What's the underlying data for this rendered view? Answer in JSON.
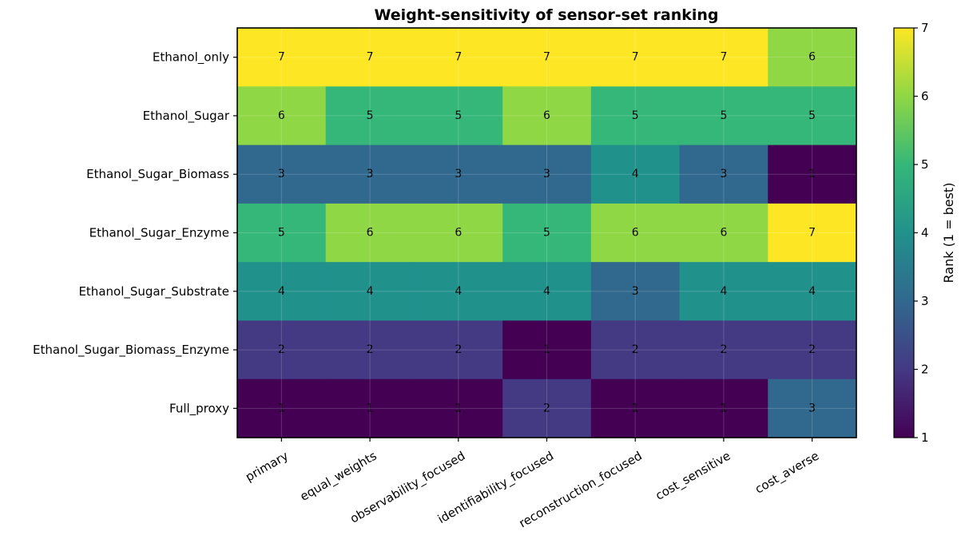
{
  "chart_data": {
    "type": "heatmap",
    "title": "Weight-sensitivity of sensor-set ranking",
    "rows": [
      "Ethanol_only",
      "Ethanol_Sugar",
      "Ethanol_Sugar_Biomass",
      "Ethanol_Sugar_Enzyme",
      "Ethanol_Sugar_Substrate",
      "Ethanol_Sugar_Biomass_Enzyme",
      "Full_proxy"
    ],
    "columns": [
      "primary",
      "equal_weights",
      "observability_focused",
      "identifiability_focused",
      "reconstruction_focused",
      "cost_sensitive",
      "cost_averse"
    ],
    "values": [
      [
        7,
        7,
        7,
        7,
        7,
        7,
        6
      ],
      [
        6,
        5,
        5,
        6,
        5,
        5,
        5
      ],
      [
        3,
        3,
        3,
        3,
        4,
        3,
        1
      ],
      [
        5,
        6,
        6,
        5,
        6,
        6,
        7
      ],
      [
        4,
        4,
        4,
        4,
        3,
        4,
        4
      ],
      [
        2,
        2,
        2,
        1,
        2,
        2,
        2
      ],
      [
        1,
        1,
        1,
        2,
        1,
        1,
        3
      ]
    ],
    "colorbar": {
      "label": "Rank (1 = best)",
      "range": [
        1,
        7
      ],
      "ticks": [
        "1",
        "2",
        "3",
        "4",
        "5",
        "6",
        "7"
      ],
      "colormap": "viridis",
      "colors": [
        "#440154",
        "#443983",
        "#31688e",
        "#21918c",
        "#35b779",
        "#8fd744",
        "#fde725"
      ]
    },
    "grid": true,
    "xtick_rotation": "30 degrees"
  }
}
